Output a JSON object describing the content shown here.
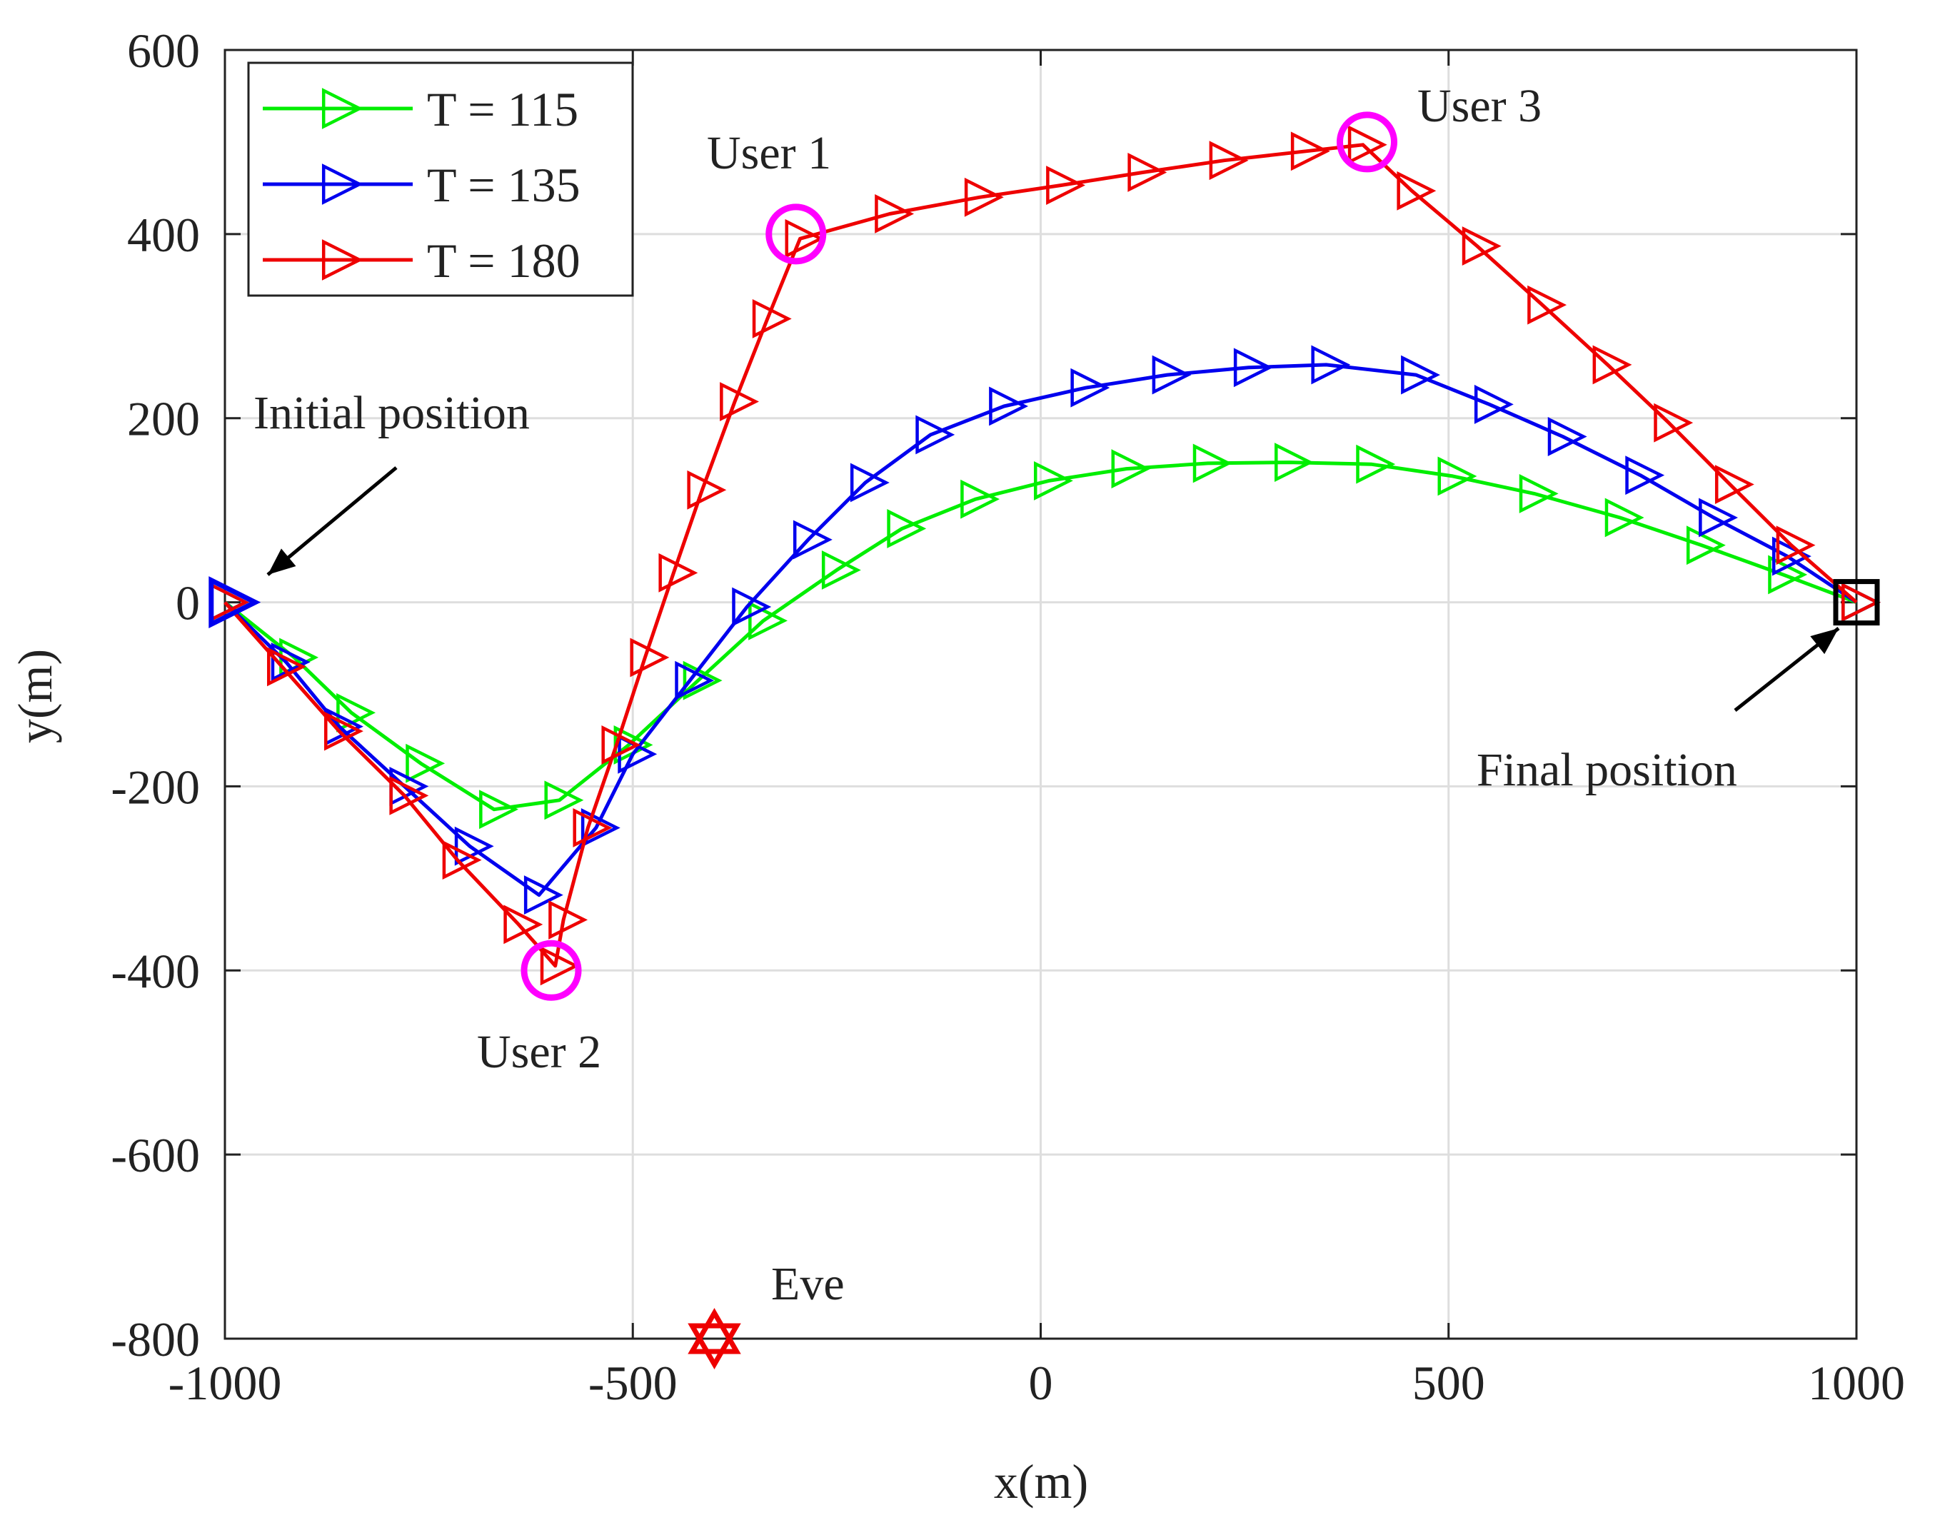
{
  "chart_data": {
    "type": "line",
    "xlabel": "x(m)",
    "ylabel": "y(m)",
    "xlim": [
      -1000,
      1000
    ],
    "ylim": [
      -800,
      600
    ],
    "xticks": [
      -1000,
      -500,
      0,
      500,
      1000
    ],
    "xtick_labels": [
      "-1000",
      "-500",
      "0",
      "500",
      "1000"
    ],
    "yticks": [
      600,
      400,
      200,
      0,
      -200,
      -400,
      -600,
      -800
    ],
    "ytick_labels": [
      "600",
      "400",
      "200",
      "0",
      "-200",
      "-400",
      "-600",
      "-800"
    ],
    "grid": true,
    "legend_position": "top-left",
    "series": [
      {
        "name": "T = 115",
        "color": "#00ee00",
        "marker": "triangle-right",
        "points": [
          [
            -1000,
            0
          ],
          [
            -915,
            -60
          ],
          [
            -845,
            -120
          ],
          [
            -760,
            -175
          ],
          [
            -670,
            -225
          ],
          [
            -590,
            -215
          ],
          [
            -505,
            -155
          ],
          [
            -420,
            -85
          ],
          [
            -340,
            -20
          ],
          [
            -250,
            35
          ],
          [
            -170,
            80
          ],
          [
            -80,
            112
          ],
          [
            10,
            132
          ],
          [
            105,
            145
          ],
          [
            205,
            151
          ],
          [
            305,
            152
          ],
          [
            405,
            150
          ],
          [
            505,
            137
          ],
          [
            605,
            118
          ],
          [
            710,
            92
          ],
          [
            810,
            62
          ],
          [
            910,
            30
          ],
          [
            1000,
            0
          ]
        ]
      },
      {
        "name": "T = 135",
        "color": "#0000ee",
        "marker": "triangle-right",
        "points": [
          [
            -1000,
            0
          ],
          [
            -925,
            -65
          ],
          [
            -860,
            -135
          ],
          [
            -780,
            -200
          ],
          [
            -700,
            -265
          ],
          [
            -615,
            -318
          ],
          [
            -545,
            -245
          ],
          [
            -500,
            -165
          ],
          [
            -430,
            -85
          ],
          [
            -360,
            -5
          ],
          [
            -285,
            68
          ],
          [
            -215,
            130
          ],
          [
            -135,
            182
          ],
          [
            -45,
            213
          ],
          [
            55,
            233
          ],
          [
            155,
            247
          ],
          [
            255,
            255
          ],
          [
            350,
            258
          ],
          [
            460,
            247
          ],
          [
            550,
            215
          ],
          [
            640,
            180
          ],
          [
            735,
            138
          ],
          [
            825,
            92
          ],
          [
            915,
            50
          ],
          [
            1000,
            0
          ]
        ]
      },
      {
        "name": "T = 180",
        "color": "#ee0000",
        "marker": "triangle-right",
        "points": [
          [
            -1000,
            0
          ],
          [
            -930,
            -70
          ],
          [
            -860,
            -140
          ],
          [
            -780,
            -210
          ],
          [
            -715,
            -280
          ],
          [
            -640,
            -350
          ],
          [
            -595,
            -395
          ],
          [
            -585,
            -345
          ],
          [
            -555,
            -245
          ],
          [
            -520,
            -155
          ],
          [
            -485,
            -60
          ],
          [
            -450,
            32
          ],
          [
            -415,
            122
          ],
          [
            -375,
            218
          ],
          [
            -335,
            308
          ],
          [
            -295,
            395
          ],
          [
            -185,
            422
          ],
          [
            -75,
            440
          ],
          [
            25,
            453
          ],
          [
            125,
            467
          ],
          [
            225,
            480
          ],
          [
            325,
            490
          ],
          [
            395,
            497
          ],
          [
            455,
            447
          ],
          [
            535,
            387
          ],
          [
            615,
            323
          ],
          [
            695,
            258
          ],
          [
            770,
            195
          ],
          [
            845,
            128
          ],
          [
            920,
            62
          ],
          [
            1000,
            0
          ]
        ]
      }
    ],
    "annotations": [
      {
        "text": "User 1",
        "x": -300,
        "y": 400,
        "marker": "circle",
        "color": "#ff00ff"
      },
      {
        "text": "User 2",
        "x": -600,
        "y": -400,
        "marker": "circle",
        "color": "#ff00ff"
      },
      {
        "text": "User 3",
        "x": 400,
        "y": 500,
        "marker": "circle",
        "color": "#ff00ff"
      },
      {
        "text": "Eve",
        "x": -400,
        "y": -800,
        "marker": "hexagram",
        "color": "#ee0000"
      },
      {
        "text": "Initial position",
        "x": -1000,
        "y": 0,
        "marker": "triangle",
        "color": "#0000ee"
      },
      {
        "text": "Final position",
        "x": 1000,
        "y": 0,
        "marker": "square",
        "color": "#000000"
      }
    ]
  }
}
